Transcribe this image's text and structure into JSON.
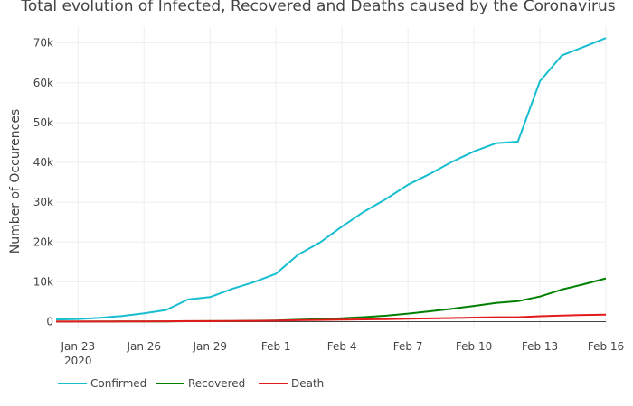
{
  "chart_data": {
    "type": "line",
    "title": "Total evolution of Infected, Recovered and Deaths caused by the Coronavirus",
    "xlabel": "",
    "ylabel": "Number of Occurences",
    "x": [
      "2020-01-22",
      "2020-01-23",
      "2020-01-24",
      "2020-01-25",
      "2020-01-26",
      "2020-01-27",
      "2020-01-28",
      "2020-01-29",
      "2020-01-30",
      "2020-01-31",
      "2020-02-01",
      "2020-02-02",
      "2020-02-03",
      "2020-02-04",
      "2020-02-05",
      "2020-02-06",
      "2020-02-07",
      "2020-02-08",
      "2020-02-09",
      "2020-02-10",
      "2020-02-11",
      "2020-02-12",
      "2020-02-13",
      "2020-02-14",
      "2020-02-15",
      "2020-02-16"
    ],
    "x_tick_labels": [
      {
        "date": "2020-01-23",
        "label": "Jan 23",
        "sublabel": "2020"
      },
      {
        "date": "2020-01-26",
        "label": "Jan 26"
      },
      {
        "date": "2020-01-29",
        "label": "Jan 29"
      },
      {
        "date": "2020-02-01",
        "label": "Feb 1"
      },
      {
        "date": "2020-02-04",
        "label": "Feb 4"
      },
      {
        "date": "2020-02-07",
        "label": "Feb 7"
      },
      {
        "date": "2020-02-10",
        "label": "Feb 10"
      },
      {
        "date": "2020-02-13",
        "label": "Feb 13"
      },
      {
        "date": "2020-02-16",
        "label": "Feb 16"
      }
    ],
    "y_ticks": [
      {
        "value": 0,
        "label": "0"
      },
      {
        "value": 10000,
        "label": "10k"
      },
      {
        "value": 20000,
        "label": "20k"
      },
      {
        "value": 30000,
        "label": "30k"
      },
      {
        "value": 40000,
        "label": "40k"
      },
      {
        "value": 50000,
        "label": "50k"
      },
      {
        "value": 60000,
        "label": "60k"
      },
      {
        "value": 70000,
        "label": "70k"
      }
    ],
    "xlim": [
      "2020-01-22",
      "2020-02-16"
    ],
    "ylim": [
      -1700,
      74000
    ],
    "grid": true,
    "legend_position": "bottom-left",
    "series": [
      {
        "name": "Confirmed",
        "color": "#17becf",
        "values": [
          555,
          653,
          941,
          1434,
          2118,
          2927,
          5578,
          6166,
          8234,
          9927,
          12038,
          16787,
          19881,
          23892,
          27635,
          30794,
          34391,
          37120,
          40150,
          42762,
          44802,
          45221,
          60368,
          66885,
          69030,
          71224
        ]
      },
      {
        "name": "Recovered",
        "color": "#008000",
        "values": [
          28,
          30,
          36,
          39,
          52,
          61,
          107,
          126,
          143,
          222,
          284,
          472,
          623,
          852,
          1124,
          1487,
          2011,
          2616,
          3244,
          3946,
          4683,
          5150,
          6295,
          8058,
          9395,
          10865
        ]
      },
      {
        "name": "Death",
        "color": "#e31a1c",
        "values": [
          17,
          18,
          26,
          42,
          56,
          82,
          131,
          133,
          171,
          213,
          259,
          362,
          426,
          492,
          564,
          634,
          719,
          806,
          906,
          1013,
          1113,
          1118,
          1371,
          1523,
          1666,
          1770
        ]
      }
    ]
  }
}
